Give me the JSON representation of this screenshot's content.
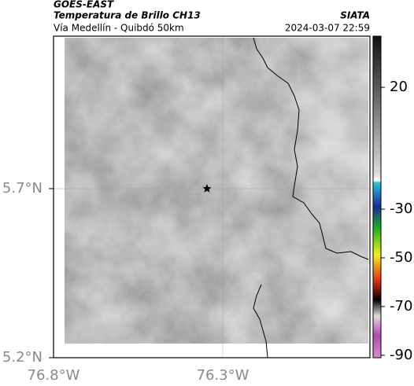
{
  "header": {
    "source": "GOES-EAST",
    "title": "Temperatura de Brillo CH13",
    "subtitle": "Vía Medellín - Quibdó 50km",
    "brand": "SIATA",
    "timestamp": "2024-03-07 22:59"
  },
  "map": {
    "xlim": [
      -76.8,
      -75.865
    ],
    "ylim": [
      5.2,
      6.151
    ],
    "xticks": [
      {
        "value": -76.8,
        "label": "76.8°W"
      },
      {
        "value": -76.3,
        "label": "76.3°W"
      }
    ],
    "yticks": [
      {
        "value": 5.2,
        "label": "5.2°N"
      },
      {
        "value": 5.7,
        "label": "5.7°N"
      }
    ],
    "grid": true
  },
  "colorbar": {
    "lim": [
      -91,
      41
    ],
    "ticks": [
      20,
      -30,
      -50,
      -70,
      -90
    ]
  }
}
